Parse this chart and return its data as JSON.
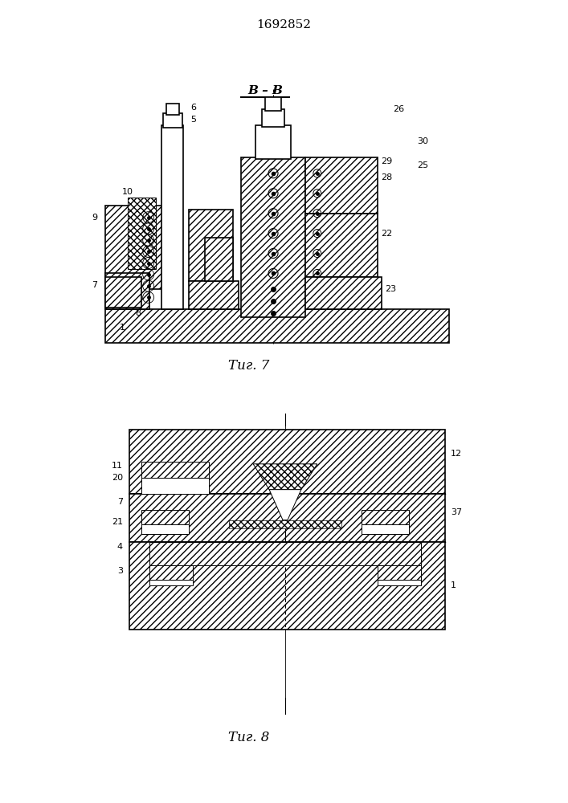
{
  "patent_number": "1692852",
  "fig7_label": "B – B",
  "fig7_caption": "Τиг. 7",
  "fig8_caption": "Τиг. 8",
  "bg_color": "#ffffff",
  "hatch_style": "////",
  "lw_main": 1.2,
  "lw_thin": 0.7
}
